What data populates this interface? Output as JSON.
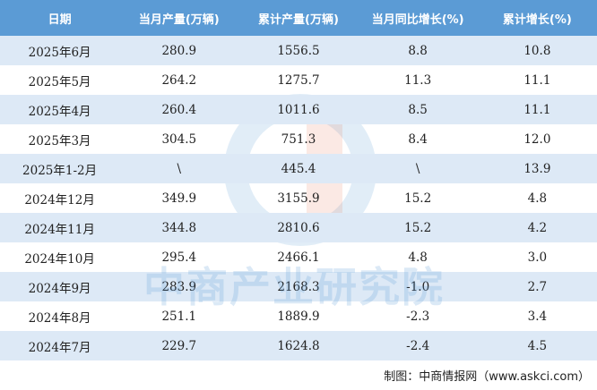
{
  "table": {
    "header": [
      "日期",
      "当月产量(万辆)",
      "累计产量(万辆)",
      "当月同比增长(%)",
      "累计增长(%)"
    ],
    "rows": [
      [
        "2025年6月",
        "280.9",
        "1556.5",
        "8.8",
        "10.8"
      ],
      [
        "2025年5月",
        "264.2",
        "1275.7",
        "11.3",
        "11.1"
      ],
      [
        "2025年4月",
        "260.4",
        "1011.6",
        "8.5",
        "11.1"
      ],
      [
        "2025年3月",
        "304.5",
        "751.3",
        "8.4",
        "12.0"
      ],
      [
        "2025年1-2月",
        "\\",
        "445.4",
        "\\",
        "13.9"
      ],
      [
        "2024年12月",
        "349.9",
        "3155.9",
        "15.2",
        "4.8"
      ],
      [
        "2024年11月",
        "344.8",
        "2810.6",
        "15.2",
        "4.2"
      ],
      [
        "2024年10月",
        "295.4",
        "2466.1",
        "4.8",
        "3.0"
      ],
      [
        "2024年9月",
        "283.9",
        "2168.3",
        "-1.0",
        "2.7"
      ],
      [
        "2024年8月",
        "251.1",
        "1889.9",
        "-2.3",
        "3.4"
      ],
      [
        "2024年7月",
        "229.7",
        "1624.8",
        "-2.4",
        "4.5"
      ]
    ]
  },
  "watermark": "中商产业研究院",
  "footer": "制图：中商情报网（www.askci.com）"
}
